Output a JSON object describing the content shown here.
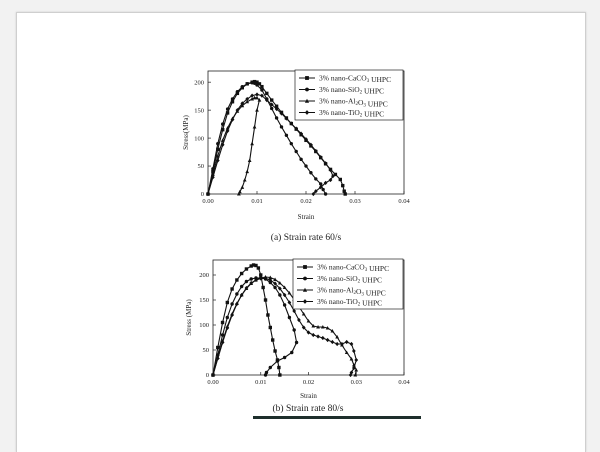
{
  "chart_data": [
    {
      "type": "line",
      "caption": "(a) Strain rate 60/s",
      "xlabel": "Strain",
      "ylabel": "Stress(MPa)",
      "xlim": [
        0.0,
        0.04
      ],
      "ylim": [
        0,
        220
      ],
      "xticks": [
        "0.00",
        "0.01",
        "0.02",
        "0.03",
        "0.04"
      ],
      "yticks": [
        "0",
        "50",
        "100",
        "150",
        "200"
      ],
      "legend": {
        "position": "top-right",
        "entries": [
          {
            "prefix": "3% nano-CaCO",
            "sub": "3",
            "suffix": " UHPC",
            "marker": "square"
          },
          {
            "prefix": "3% nano-SiO",
            "sub": "2",
            "suffix": " UHPC",
            "marker": "circle"
          },
          {
            "prefix": "3% nano-Al",
            "sub": "2",
            "mid": "O",
            "sub2": "3",
            "suffix": " UHPC",
            "marker": "triangle"
          },
          {
            "prefix": "3% nano-TiO",
            "sub": "2",
            "suffix": " UHPC",
            "marker": "diamond"
          }
        ]
      },
      "series": [
        {
          "marker": "square",
          "points": [
            [
              0,
              0
            ],
            [
              0.001,
              40
            ],
            [
              0.002,
              80
            ],
            [
              0.003,
              115
            ],
            [
              0.004,
              145
            ],
            [
              0.005,
              165
            ],
            [
              0.006,
              180
            ],
            [
              0.007,
              190
            ],
            [
              0.008,
              197
            ],
            [
              0.009,
              200
            ],
            [
              0.0095,
              201
            ],
            [
              0.01,
              200
            ],
            [
              0.0105,
              197
            ],
            [
              0.011,
              192
            ],
            [
              0.012,
              180
            ],
            [
              0.013,
              168
            ],
            [
              0.014,
              157
            ],
            [
              0.015,
              146
            ],
            [
              0.016,
              136
            ],
            [
              0.017,
              126
            ],
            [
              0.018,
              116
            ],
            [
              0.019,
              106
            ],
            [
              0.02,
              96
            ],
            [
              0.021,
              86
            ],
            [
              0.022,
              76
            ],
            [
              0.023,
              65
            ],
            [
              0.024,
              54
            ],
            [
              0.025,
              44
            ],
            [
              0.026,
              35
            ],
            [
              0.027,
              26
            ],
            [
              0.0275,
              15
            ],
            [
              0.0278,
              5
            ],
            [
              0.028,
              0
            ]
          ]
        },
        {
          "marker": "circle",
          "points": [
            [
              0,
              0
            ],
            [
              0.001,
              45
            ],
            [
              0.002,
              90
            ],
            [
              0.003,
              125
            ],
            [
              0.004,
              152
            ],
            [
              0.005,
              170
            ],
            [
              0.006,
              183
            ],
            [
              0.007,
              192
            ],
            [
              0.008,
              197
            ],
            [
              0.009,
              199
            ],
            [
              0.0095,
              198
            ],
            [
              0.01,
              195
            ],
            [
              0.011,
              186
            ],
            [
              0.012,
              170
            ],
            [
              0.013,
              153
            ],
            [
              0.014,
              136
            ],
            [
              0.015,
              120
            ],
            [
              0.016,
              105
            ],
            [
              0.017,
              90
            ],
            [
              0.018,
              76
            ],
            [
              0.019,
              62
            ],
            [
              0.02,
              50
            ],
            [
              0.021,
              38
            ],
            [
              0.022,
              27
            ],
            [
              0.023,
              18
            ],
            [
              0.0235,
              8
            ],
            [
              0.024,
              0
            ]
          ]
        },
        {
          "marker": "triangle",
          "points": [
            [
              0,
              0
            ],
            [
              0.001,
              35
            ],
            [
              0.002,
              68
            ],
            [
              0.003,
              96
            ],
            [
              0.004,
              118
            ],
            [
              0.005,
              135
            ],
            [
              0.006,
              148
            ],
            [
              0.007,
              158
            ],
            [
              0.008,
              165
            ],
            [
              0.009,
              170
            ],
            [
              0.0095,
              172
            ],
            [
              0.01,
              172
            ],
            [
              0.0105,
              168
            ],
            [
              0.01,
              150
            ],
            [
              0.0095,
              120
            ],
            [
              0.009,
              90
            ],
            [
              0.0085,
              60
            ],
            [
              0.008,
              40
            ],
            [
              0.0075,
              25
            ],
            [
              0.007,
              12
            ],
            [
              0.0065,
              4
            ],
            [
              0.0063,
              0
            ]
          ]
        },
        {
          "marker": "diamond",
          "points": [
            [
              0,
              0
            ],
            [
              0.001,
              30
            ],
            [
              0.002,
              60
            ],
            [
              0.003,
              88
            ],
            [
              0.004,
              113
            ],
            [
              0.005,
              133
            ],
            [
              0.006,
              150
            ],
            [
              0.007,
              162
            ],
            [
              0.008,
              170
            ],
            [
              0.009,
              176
            ],
            [
              0.01,
              178
            ],
            [
              0.011,
              176
            ],
            [
              0.012,
              168
            ],
            [
              0.013,
              160
            ],
            [
              0.014,
              152
            ],
            [
              0.015,
              144
            ],
            [
              0.016,
              135
            ],
            [
              0.017,
              126
            ],
            [
              0.018,
              117
            ],
            [
              0.019,
              108
            ],
            [
              0.02,
              98
            ],
            [
              0.021,
              88
            ],
            [
              0.022,
              77
            ],
            [
              0.023,
              66
            ],
            [
              0.024,
              55
            ],
            [
              0.025,
              43
            ],
            [
              0.0255,
              32
            ],
            [
              0.025,
              25
            ],
            [
              0.024,
              20
            ],
            [
              0.023,
              12
            ],
            [
              0.022,
              5
            ],
            [
              0.0215,
              0
            ]
          ]
        }
      ]
    },
    {
      "type": "line",
      "caption": "(b) Strain rate 80/s",
      "xlabel": "Strain",
      "ylabel": "Stress (MPa)",
      "xlim": [
        0.0,
        0.04
      ],
      "ylim": [
        0,
        230
      ],
      "xticks": [
        "0.00",
        "0.01",
        "0.02",
        "0.03",
        "0.04"
      ],
      "yticks": [
        "0",
        "50",
        "100",
        "150",
        "200"
      ],
      "legend": {
        "position": "top-right",
        "entries": [
          {
            "prefix": "3% nano-CaCO",
            "sub": "3",
            "suffix": " UHPC",
            "marker": "square"
          },
          {
            "prefix": "3% nano-SiO",
            "sub": "2",
            "suffix": " UHPC",
            "marker": "circle"
          },
          {
            "prefix": "3% nano-Al",
            "sub": "2",
            "mid": "O",
            "sub2": "3",
            "suffix": " UHPC",
            "marker": "triangle"
          },
          {
            "prefix": "3% nano-TiO",
            "sub": "2",
            "suffix": " UHPC",
            "marker": "diamond"
          }
        ]
      },
      "series": [
        {
          "marker": "square",
          "points": [
            [
              0,
              0
            ],
            [
              0.001,
              55
            ],
            [
              0.002,
              105
            ],
            [
              0.003,
              145
            ],
            [
              0.004,
              172
            ],
            [
              0.005,
              190
            ],
            [
              0.006,
              203
            ],
            [
              0.007,
              212
            ],
            [
              0.008,
              218
            ],
            [
              0.0085,
              220
            ],
            [
              0.009,
              219
            ],
            [
              0.0095,
              214
            ],
            [
              0.01,
              200
            ],
            [
              0.0105,
              175
            ],
            [
              0.011,
              150
            ],
            [
              0.0115,
              120
            ],
            [
              0.012,
              95
            ],
            [
              0.0125,
              70
            ],
            [
              0.013,
              48
            ],
            [
              0.0135,
              30
            ],
            [
              0.0138,
              15
            ],
            [
              0.014,
              0
            ]
          ]
        },
        {
          "marker": "circle",
          "points": [
            [
              0,
              0
            ],
            [
              0.001,
              40
            ],
            [
              0.002,
              80
            ],
            [
              0.003,
              115
            ],
            [
              0.004,
              142
            ],
            [
              0.005,
              162
            ],
            [
              0.006,
              177
            ],
            [
              0.007,
              187
            ],
            [
              0.008,
              192
            ],
            [
              0.009,
              194
            ],
            [
              0.01,
              194
            ],
            [
              0.011,
              192
            ],
            [
              0.012,
              185
            ],
            [
              0.013,
              175
            ],
            [
              0.014,
              160
            ],
            [
              0.015,
              140
            ],
            [
              0.016,
              115
            ],
            [
              0.017,
              90
            ],
            [
              0.0175,
              65
            ],
            [
              0.0165,
              45
            ],
            [
              0.015,
              35
            ],
            [
              0.0135,
              28
            ],
            [
              0.012,
              15
            ],
            [
              0.0112,
              5
            ],
            [
              0.011,
              0
            ]
          ]
        },
        {
          "marker": "triangle",
          "points": [
            [
              0,
              0
            ],
            [
              0.001,
              35
            ],
            [
              0.002,
              68
            ],
            [
              0.003,
              97
            ],
            [
              0.004,
              122
            ],
            [
              0.005,
              143
            ],
            [
              0.006,
              160
            ],
            [
              0.007,
              173
            ],
            [
              0.008,
              183
            ],
            [
              0.009,
              190
            ],
            [
              0.01,
              194
            ],
            [
              0.011,
              196
            ],
            [
              0.012,
              195
            ],
            [
              0.013,
              191
            ],
            [
              0.014,
              184
            ],
            [
              0.015,
              175
            ],
            [
              0.016,
              164
            ],
            [
              0.017,
              151
            ],
            [
              0.018,
              137
            ],
            [
              0.019,
              122
            ],
            [
              0.02,
              108
            ],
            [
              0.021,
              98
            ],
            [
              0.022,
              96
            ],
            [
              0.023,
              96
            ],
            [
              0.024,
              94
            ],
            [
              0.025,
              88
            ],
            [
              0.026,
              76
            ],
            [
              0.027,
              60
            ],
            [
              0.028,
              45
            ],
            [
              0.029,
              32
            ],
            [
              0.0295,
              20
            ],
            [
              0.03,
              10
            ],
            [
              0.0298,
              0
            ]
          ]
        },
        {
          "marker": "diamond",
          "points": [
            [
              0,
              0
            ],
            [
              0.001,
              33
            ],
            [
              0.002,
              65
            ],
            [
              0.003,
              94
            ],
            [
              0.004,
              120
            ],
            [
              0.005,
              142
            ],
            [
              0.006,
              160
            ],
            [
              0.007,
              174
            ],
            [
              0.008,
              184
            ],
            [
              0.009,
              190
            ],
            [
              0.01,
              193
            ],
            [
              0.011,
              193
            ],
            [
              0.012,
              190
            ],
            [
              0.013,
              183
            ],
            [
              0.014,
              173
            ],
            [
              0.015,
              160
            ],
            [
              0.016,
              145
            ],
            [
              0.017,
              128
            ],
            [
              0.018,
              110
            ],
            [
              0.019,
              95
            ],
            [
              0.02,
              85
            ],
            [
              0.021,
              80
            ],
            [
              0.022,
              77
            ],
            [
              0.023,
              74
            ],
            [
              0.024,
              70
            ],
            [
              0.025,
              66
            ],
            [
              0.026,
              62
            ],
            [
              0.027,
              62
            ],
            [
              0.028,
              66
            ],
            [
              0.029,
              62
            ],
            [
              0.0295,
              48
            ],
            [
              0.03,
              30
            ],
            [
              0.0295,
              14
            ],
            [
              0.029,
              5
            ],
            [
              0.0288,
              0
            ]
          ]
        }
      ]
    }
  ]
}
